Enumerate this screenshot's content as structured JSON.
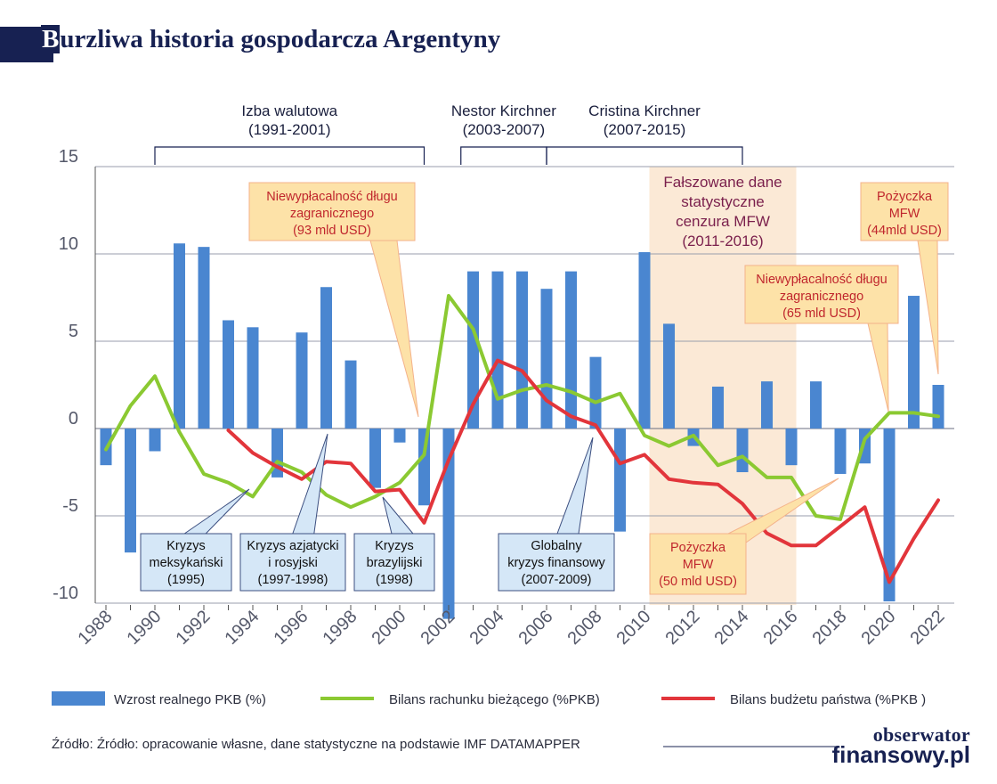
{
  "title": "Burzliwa historia gospodarcza Argentyny",
  "title_first": "B",
  "title_rest": "urzliwa historia gospodarcza Argentyny",
  "source": "Źródło: Źródło: opracowanie własne, dane statystyczne na podstawie IMF DATAMAPPER",
  "logo": {
    "line1": "obserwator",
    "line2": "finansowy.pl"
  },
  "colors": {
    "gdp": "#4a86d0",
    "current_account": "#8bc932",
    "budget": "#e2353b",
    "title": "#172152",
    "shade": "#fbe9d6"
  },
  "chart_data": {
    "type": "bar",
    "ylim": [
      -10,
      15
    ],
    "yticks": [
      15,
      10,
      5,
      0,
      -5,
      -10
    ],
    "xticks": [
      "1988",
      "1990",
      "1992",
      "1994",
      "1996",
      "1998",
      "2000",
      "2002",
      "2004",
      "2006",
      "2008",
      "2010",
      "2012",
      "2014",
      "2016",
      "2018",
      "2020",
      "2022"
    ],
    "years": [
      1988,
      1989,
      1990,
      1991,
      1992,
      1993,
      1994,
      1995,
      1996,
      1997,
      1998,
      1999,
      2000,
      2001,
      2002,
      2003,
      2004,
      2005,
      2006,
      2007,
      2008,
      2009,
      2010,
      2011,
      2012,
      2013,
      2014,
      2015,
      2016,
      2017,
      2018,
      2019,
      2020,
      2021,
      2022
    ],
    "legend": [
      {
        "key": "gdp",
        "name": "Wzrost realnego PKB (%)"
      },
      {
        "key": "ca",
        "name": "Bilans rachunku bieżącego (%PKB)"
      },
      {
        "key": "budget",
        "name": "Bilans budżetu państwa (%PKB )"
      }
    ],
    "series": [
      {
        "name": "Wzrost realnego PKB (%)",
        "type": "bar",
        "values": [
          -2.1,
          -7.1,
          -1.3,
          10.6,
          10.4,
          6.2,
          5.8,
          -2.8,
          5.5,
          8.1,
          3.9,
          -3.4,
          -0.8,
          -4.4,
          -10.9,
          9.0,
          9.0,
          9.0,
          8.0,
          9.0,
          4.1,
          -5.9,
          10.1,
          6.0,
          -1.0,
          2.4,
          -2.5,
          2.7,
          -2.1,
          2.7,
          -2.6,
          -2.0,
          -9.9,
          7.6,
          2.5
        ]
      },
      {
        "name": "Bilans rachunku bieżącego (%PKB)",
        "type": "line",
        "values": [
          -1.2,
          1.3,
          3.0,
          -0.2,
          -2.6,
          -3.1,
          -3.9,
          -1.9,
          -2.5,
          -3.8,
          -4.5,
          -3.9,
          -3.1,
          -1.5,
          7.6,
          5.7,
          1.7,
          2.2,
          2.5,
          2.1,
          1.5,
          2.0,
          -0.4,
          -1.0,
          -0.4,
          -2.1,
          -1.6,
          -2.8,
          -2.8,
          -5.0,
          -5.2,
          -0.6,
          0.9,
          0.9,
          0.7
        ]
      },
      {
        "name": "Bilans budżetu państwa (%PKB )",
        "type": "line",
        "values": [
          null,
          null,
          null,
          null,
          null,
          -0.1,
          -1.4,
          -2.2,
          -2.9,
          -1.9,
          -2.0,
          -3.6,
          -3.5,
          -5.4,
          -1.8,
          1.4,
          3.9,
          3.3,
          1.6,
          0.7,
          0.2,
          -2.0,
          -1.5,
          -2.9,
          -3.1,
          -3.2,
          -4.3,
          -6.0,
          -6.7,
          -6.7,
          -5.6,
          -4.5,
          -8.8,
          -6.3,
          -4.1
        ]
      }
    ],
    "periods": [
      {
        "label1": "Izba walutowa",
        "label2": "(1991-2001)",
        "from": 1990,
        "to": 2001
      },
      {
        "label1": "Nestor Kirchner",
        "label2": "(2003-2007)",
        "from": 2002.5,
        "to": 2006
      },
      {
        "label1": "Cristina Kirchner",
        "label2": "(2007-2015)",
        "from": 2006,
        "to": 2014
      }
    ],
    "shaded_period": {
      "lines": [
        "Fałszowane dane",
        "statystyczne",
        "cenzura MFW",
        "(2011-2016)"
      ],
      "from": 2010.2,
      "to": 2016.2
    },
    "annotations": {
      "blue": [
        {
          "lines": [
            "Kryzys",
            "meksykański",
            "(1995)"
          ],
          "year": 1995
        },
        {
          "lines": [
            "Kryzys azjatycki",
            "i rosyjski",
            "(1997-1998)"
          ],
          "year": 1997.5
        },
        {
          "lines": [
            "Kryzys",
            "brazylijski",
            "(1998)"
          ],
          "year": 1998.5
        },
        {
          "lines": [
            "Globalny",
            "kryzys finansowy",
            "(2007-2009)"
          ],
          "year": 2008
        }
      ],
      "orange": [
        {
          "lines": [
            "Niewypłacalność długu",
            "zagranicznego",
            "(93 mld USD)"
          ],
          "year": 2001
        },
        {
          "lines": [
            "Pożyczka",
            "MFW",
            "(50 mld USD)"
          ],
          "year": 2018
        },
        {
          "lines": [
            "Niewypłacalność długu",
            "zagranicznego",
            "(65 mld USD)"
          ],
          "year": 2020
        },
        {
          "lines": [
            "Pożyczka",
            "MFW",
            "(44mld USD)"
          ],
          "year": 2022
        }
      ]
    }
  }
}
